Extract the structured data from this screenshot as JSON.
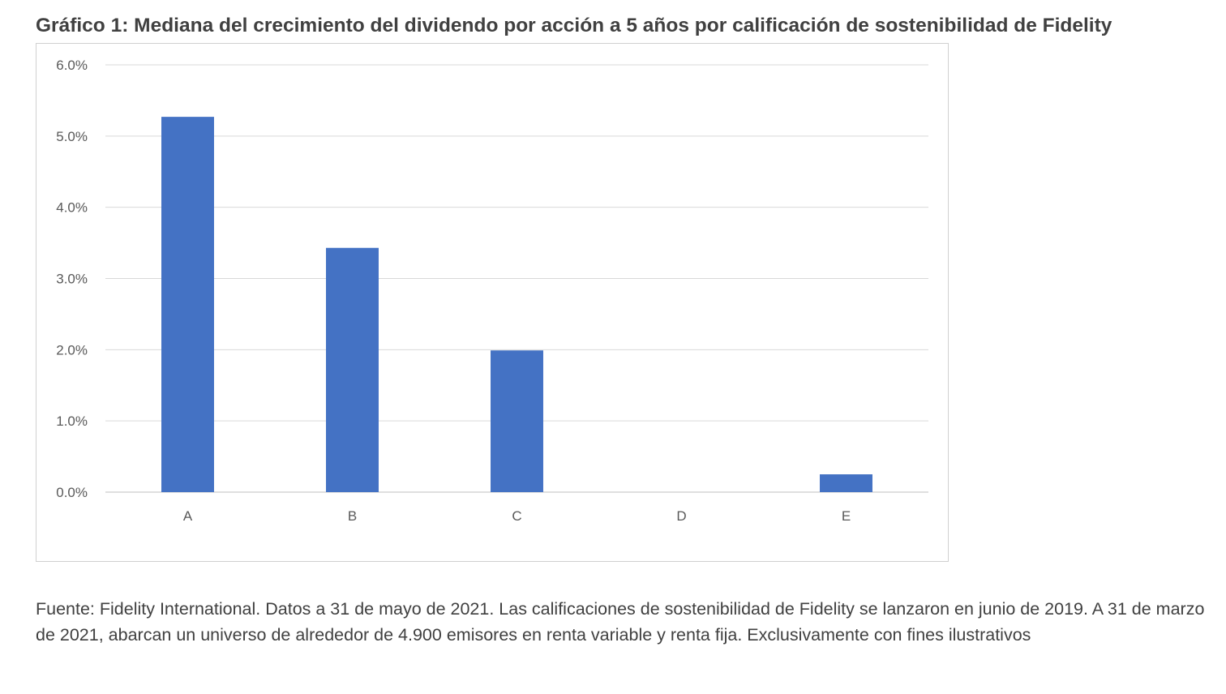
{
  "figure": {
    "title": "Gráfico 1: Mediana del crecimiento del dividendo por acción a 5 años por calificación de sostenibilidad de Fidelity",
    "source_note": "Fuente: Fidelity International. Datos a 31 de mayo de 2021. Las calificaciones de sostenibilidad de Fidelity se lanzaron en junio de 2019. A 31 de marzo de 2021, abarcan un universo de alrededor de 4.900 emisores en renta variable y renta fija. Exclusivamente con fines ilustrativos"
  },
  "chart_data": {
    "type": "bar",
    "title": "Gráfico 1: Mediana del crecimiento del dividendo por acción a 5 años por calificación de sostenibilidad de Fidelity",
    "xlabel": "",
    "ylabel": "",
    "categories": [
      "A",
      "B",
      "C",
      "D",
      "E"
    ],
    "values": [
      5.27,
      3.43,
      1.99,
      0.0,
      0.25
    ],
    "value_unit": "%",
    "ylim": [
      0,
      6
    ],
    "y_ticks": [
      0,
      1,
      2,
      3,
      4,
      5,
      6
    ],
    "y_tick_labels": [
      "0.0%",
      "1.0%",
      "2.0%",
      "3.0%",
      "4.0%",
      "5.0%",
      "6.0%"
    ],
    "grid": true,
    "legend": "none",
    "colors": {
      "bar": "#4472C4",
      "grid": "#d9d9d9",
      "axis": "#bfbfbf",
      "tick_text": "#595959"
    }
  }
}
